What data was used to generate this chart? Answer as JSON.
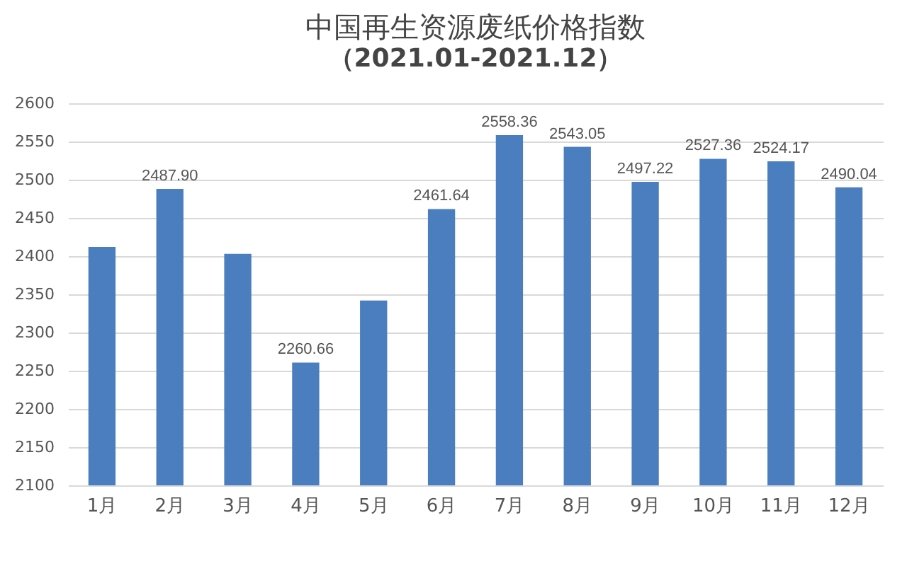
{
  "chart_data": {
    "type": "bar",
    "title": "中国再生资源废纸价格指数",
    "subtitle": "（2021.01-2021.12）",
    "categories": [
      "1月",
      "2月",
      "3月",
      "4月",
      "5月",
      "6月",
      "7月",
      "8月",
      "9月",
      "10月",
      "11月",
      "12月"
    ],
    "values": [
      2412,
      2487.9,
      2403,
      2260.66,
      2342,
      2461.64,
      2558.36,
      2543.05,
      2497.22,
      2527.36,
      2524.17,
      2490.04
    ],
    "value_labels": [
      null,
      "2487.90",
      null,
      "2260.66",
      null,
      "2461.64",
      "2558.36",
      "2543.05",
      "2497.22",
      "2527.36",
      "2524.17",
      "2490.04"
    ],
    "color": "#4a7ebf",
    "ylim": [
      2100,
      2600
    ],
    "yticks": [
      2100,
      2150,
      2200,
      2250,
      2300,
      2350,
      2400,
      2450,
      2500,
      2550,
      2600
    ],
    "grid": "y"
  }
}
